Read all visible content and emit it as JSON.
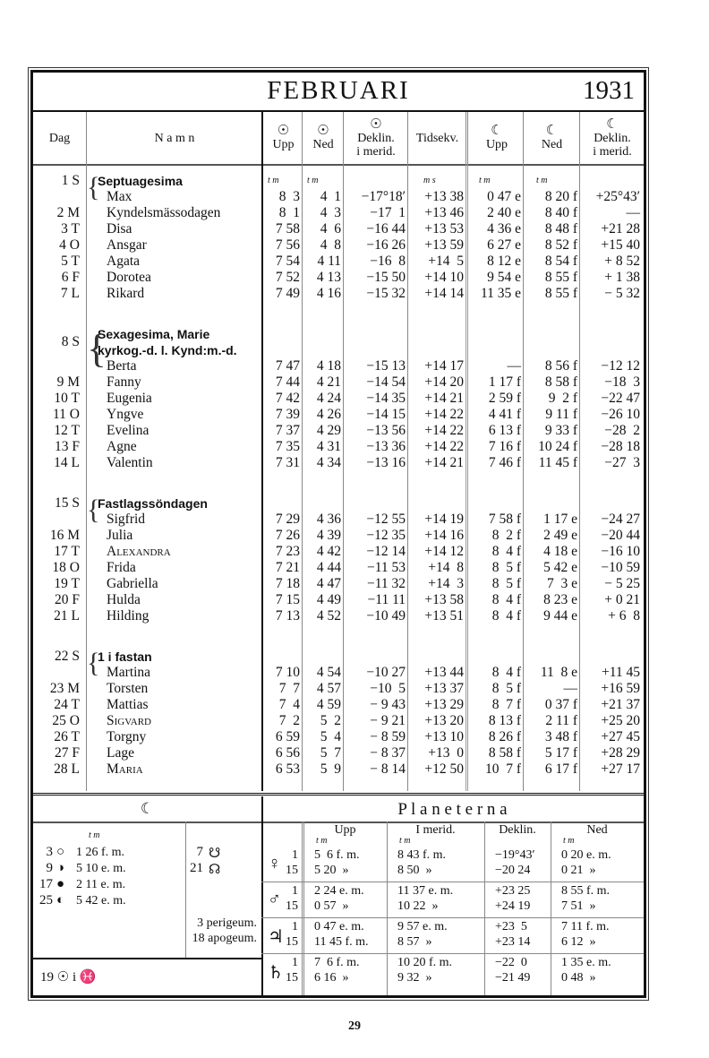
{
  "header": {
    "month": "FEBRUARI",
    "year": "1931"
  },
  "columns": {
    "dag": "Dag",
    "namn": "N a m n",
    "sun_up": [
      "☉",
      "Upp"
    ],
    "sun_down": [
      "☉",
      "Ned"
    ],
    "sun_decl": [
      "☉",
      "Deklin.",
      "i merid."
    ],
    "eq_time": [
      "Tidsekv."
    ],
    "moon_up": [
      "☾",
      "Upp"
    ],
    "moon_down": [
      "☾",
      "Ned"
    ],
    "moon_decl": [
      "☾",
      "Deklin.",
      "i merid."
    ]
  },
  "units": {
    "sun_up": "t m",
    "sun_down": "t m",
    "eq_time": "m s",
    "moon_up": "t m",
    "moon_down": "t m"
  },
  "weeks": [
    [
      {
        "d": "1 S",
        "feast": [
          "Septuagesima"
        ],
        "name": "Max",
        "su": "8  3",
        "sd": "4  1",
        "dec": "−17°18′",
        "eq": "+13 38",
        "mu": "0 47 e",
        "md": "8 20 f",
        "mdec": "+25°43′"
      },
      {
        "d": "2 M",
        "name": "Kyndelsmässodagen",
        "su": "8  1",
        "sd": "4  3",
        "dec": "−17  1",
        "eq": "+13 46",
        "mu": "2 40 e",
        "md": "8 40 f",
        "mdec": "—"
      },
      {
        "d": "3 T",
        "name": "Disa",
        "su": "7 58",
        "sd": "4  6",
        "dec": "−16 44",
        "eq": "+13 53",
        "mu": "4 36 e",
        "md": "8 48 f",
        "mdec": "+21 28"
      },
      {
        "d": "4 O",
        "name": "Ansgar",
        "su": "7 56",
        "sd": "4  8",
        "dec": "−16 26",
        "eq": "+13 59",
        "mu": "6 27 e",
        "md": "8 52 f",
        "mdec": "+15 40"
      },
      {
        "d": "5 T",
        "name": "Agata",
        "su": "7 54",
        "sd": "4 11",
        "dec": "−16  8",
        "eq": "+14  5",
        "mu": "8 12 e",
        "md": "8 54 f",
        "mdec": "+ 8 52"
      },
      {
        "d": "6 F",
        "name": "Dorotea",
        "su": "7 52",
        "sd": "4 13",
        "dec": "−15 50",
        "eq": "+14 10",
        "mu": "9 54 e",
        "md": "8 55 f",
        "mdec": "+ 1 38"
      },
      {
        "d": "7 L",
        "name": "Rikard",
        "su": "7 49",
        "sd": "4 16",
        "dec": "−15 32",
        "eq": "+14 14",
        "mu": "11 35 e",
        "md": "8 55 f",
        "mdec": "− 5 32"
      }
    ],
    [
      {
        "d": "8 S",
        "feast": [
          "Sexagesima, Marie",
          "kyrkog.-d. l. Kynd:m.-d."
        ],
        "name": "Berta",
        "su": "7 47",
        "sd": "4 18",
        "dec": "−15 13",
        "eq": "+14 17",
        "mu": "—",
        "md": "8 56 f",
        "mdec": "−12 12"
      },
      {
        "d": "9 M",
        "name": "Fanny",
        "su": "7 44",
        "sd": "4 21",
        "dec": "−14 54",
        "eq": "+14 20",
        "mu": "1 17 f",
        "md": "8 58 f",
        "mdec": "−18  3"
      },
      {
        "d": "10 T",
        "name": "Eugenia",
        "su": "7 42",
        "sd": "4 24",
        "dec": "−14 35",
        "eq": "+14 21",
        "mu": "2 59 f",
        "md": "9  2 f",
        "mdec": "−22 47"
      },
      {
        "d": "11 O",
        "name": "Yngve",
        "su": "7 39",
        "sd": "4 26",
        "dec": "−14 15",
        "eq": "+14 22",
        "mu": "4 41 f",
        "md": "9 11 f",
        "mdec": "−26 10"
      },
      {
        "d": "12 T",
        "name": "Evelina",
        "su": "7 37",
        "sd": "4 29",
        "dec": "−13 56",
        "eq": "+14 22",
        "mu": "6 13 f",
        "md": "9 33 f",
        "mdec": "−28  2"
      },
      {
        "d": "13 F",
        "name": "Agne",
        "su": "7 35",
        "sd": "4 31",
        "dec": "−13 36",
        "eq": "+14 22",
        "mu": "7 16 f",
        "md": "10 24 f",
        "mdec": "−28 18"
      },
      {
        "d": "14 L",
        "name": "Valentin",
        "su": "7 31",
        "sd": "4 34",
        "dec": "−13 16",
        "eq": "+14 21",
        "mu": "7 46 f",
        "md": "11 45 f",
        "mdec": "−27  3"
      }
    ],
    [
      {
        "d": "15 S",
        "feast": [
          "Fastlagssöndagen"
        ],
        "name": "Sigfrid",
        "su": "7 29",
        "sd": "4 36",
        "dec": "−12 55",
        "eq": "+14 19",
        "mu": "7 58 f",
        "md": "1 17 e",
        "mdec": "−24 27"
      },
      {
        "d": "16 M",
        "name": "Julia",
        "su": "7 26",
        "sd": "4 39",
        "dec": "−12 35",
        "eq": "+14 16",
        "mu": "8  2 f",
        "md": "2 49 e",
        "mdec": "−20 44"
      },
      {
        "d": "17 T",
        "name": "Alexandra",
        "sc": true,
        "su": "7 23",
        "sd": "4 42",
        "dec": "−12 14",
        "eq": "+14 12",
        "mu": "8  4 f",
        "md": "4 18 e",
        "mdec": "−16 10"
      },
      {
        "d": "18 O",
        "name": "Frida",
        "su": "7 21",
        "sd": "4 44",
        "dec": "−11 53",
        "eq": "+14  8",
        "mu": "8  5 f",
        "md": "5 42 e",
        "mdec": "−10 59"
      },
      {
        "d": "19 T",
        "name": "Gabriella",
        "su": "7 18",
        "sd": "4 47",
        "dec": "−11 32",
        "eq": "+14  3",
        "mu": "8  5 f",
        "md": "7  3 e",
        "mdec": "− 5 25"
      },
      {
        "d": "20 F",
        "name": "Hulda",
        "su": "7 15",
        "sd": "4 49",
        "dec": "−11 11",
        "eq": "+13 58",
        "mu": "8  4 f",
        "md": "8 23 e",
        "mdec": "+ 0 21"
      },
      {
        "d": "21 L",
        "name": "Hilding",
        "su": "7 13",
        "sd": "4 52",
        "dec": "−10 49",
        "eq": "+13 51",
        "mu": "8  4 f",
        "md": "9 44 e",
        "mdec": "+ 6  8"
      }
    ],
    [
      {
        "d": "22 S",
        "feast": [
          "1 i fastan"
        ],
        "name": "Martina",
        "su": "7 10",
        "sd": "4 54",
        "dec": "−10 27",
        "eq": "+13 44",
        "mu": "8  4 f",
        "md": "11  8 e",
        "mdec": "+11 45"
      },
      {
        "d": "23 M",
        "name": "Torsten",
        "su": "7  7",
        "sd": "4 57",
        "dec": "−10  5",
        "eq": "+13 37",
        "mu": "8  5 f",
        "md": "—",
        "mdec": "+16 59"
      },
      {
        "d": "24 T",
        "name": "Mattias",
        "su": "7  4",
        "sd": "4 59",
        "dec": "− 9 43",
        "eq": "+13 29",
        "mu": "8  7 f",
        "md": "0 37 f",
        "mdec": "+21 37"
      },
      {
        "d": "25 O",
        "name": "Sigvard",
        "sc": true,
        "su": "7  2",
        "sd": "5  2",
        "dec": "− 9 21",
        "eq": "+13 20",
        "mu": "8 13 f",
        "md": "2 11 f",
        "mdec": "+25 20"
      },
      {
        "d": "26 T",
        "name": "Torgny",
        "su": "6 59",
        "sd": "5  4",
        "dec": "− 8 59",
        "eq": "+13 10",
        "mu": "8 26 f",
        "md": "3 48 f",
        "mdec": "+27 45"
      },
      {
        "d": "27 F",
        "name": "Lage",
        "su": "6 56",
        "sd": "5  7",
        "dec": "− 8 37",
        "eq": "+13  0",
        "mu": "8 58 f",
        "md": "5 17 f",
        "mdec": "+28 29"
      },
      {
        "d": "28 L",
        "name": "Maria",
        "sc": true,
        "su": "6 53",
        "sd": "5  9",
        "dec": "− 8 14",
        "eq": "+12 50",
        "mu": "10  7 f",
        "md": "6 17 f",
        "mdec": "+27 17"
      }
    ]
  ],
  "moon": {
    "title": "☾",
    "unit": "t m",
    "phases": [
      {
        "day": "3",
        "symbol": "○",
        "time": "1 26 f. m."
      },
      {
        "day": "9",
        "symbol": "◑",
        "time": "5 10 e. m."
      },
      {
        "day": "17",
        "symbol": "●",
        "time": "2 11 e. m."
      },
      {
        "day": "25",
        "symbol": "◐",
        "time": "5 42 e. m."
      }
    ],
    "nodes": [
      {
        "day": "7",
        "symbol": "☋"
      },
      {
        "day": "21",
        "symbol": "☊"
      }
    ],
    "apsides": [
      "3 perigeum.",
      "18 apogeum."
    ],
    "sun_sign": "19 ☉ i ♓"
  },
  "planets": {
    "title": "P l a n e t e r n a",
    "cols": [
      "Upp",
      "I merid.",
      "Deklin.",
      "Ned"
    ],
    "unit": "t m",
    "rows": [
      {
        "symbol": "♀",
        "days": [
          "1",
          "15"
        ],
        "upp": [
          "5  6 f. m.",
          "5 20  »"
        ],
        "merid": [
          "8 43 f. m.",
          "8 50  »"
        ],
        "decl": [
          "−19°43′",
          "−20 24"
        ],
        "ned": [
          "0 20 e. m.",
          "0 21  »"
        ]
      },
      {
        "symbol": "♂",
        "days": [
          "1",
          "15"
        ],
        "upp": [
          "2 24 e. m.",
          "0 57  »"
        ],
        "merid": [
          "11 37 e. m.",
          "10 22  »"
        ],
        "decl": [
          "+23 25",
          "+24 19"
        ],
        "ned": [
          "8 55 f. m.",
          "7 51  »"
        ]
      },
      {
        "symbol": "♃",
        "days": [
          "1",
          "15"
        ],
        "upp": [
          "0 47 e. m.",
          "11 45 f. m."
        ],
        "merid": [
          "9 57 e. m.",
          "8 57  »"
        ],
        "decl": [
          "+23  5",
          "+23 14"
        ],
        "ned": [
          "7 11 f. m.",
          "6 12  »"
        ]
      },
      {
        "symbol": "♄",
        "days": [
          "1",
          "15"
        ],
        "upp": [
          "7  6 f. m.",
          "6 16  »"
        ],
        "merid": [
          "10 20 f. m.",
          "9 32  »"
        ],
        "decl": [
          "−22  0",
          "−21 49"
        ],
        "ned": [
          "1 35 e. m.",
          "0 48  »"
        ]
      }
    ]
  },
  "page_number": "29"
}
